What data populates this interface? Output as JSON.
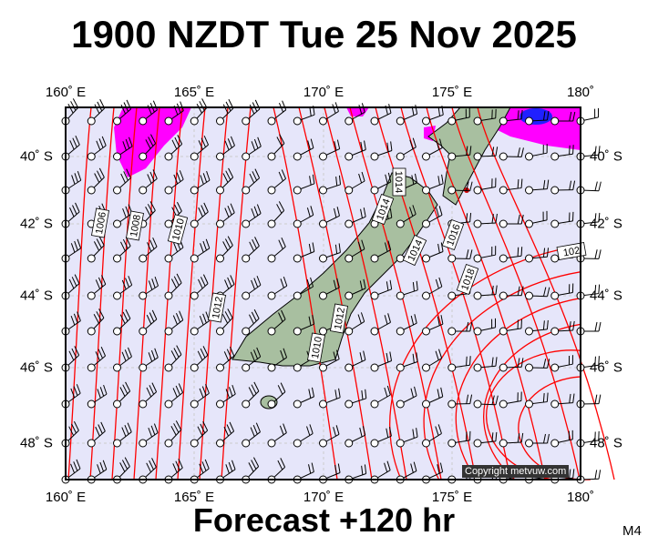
{
  "title": "1900 NZDT Tue 25 Nov 2025",
  "footer": "Forecast +120 hr",
  "model_code": "M4",
  "copyright": "Copyright metvuw.com",
  "lon_labels": [
    "160˚ E",
    "165˚ E",
    "170˚ E",
    "175˚ E",
    "180˚"
  ],
  "lat_labels": [
    "40˚ S",
    "42˚ S",
    "44˚ S",
    "46˚ S",
    "48˚ S"
  ],
  "isobar_labels": [
    "1006",
    "1008",
    "1010",
    "1012",
    "1014",
    "1014",
    "1014",
    "1016",
    "1018",
    "1012",
    "1010",
    "102"
  ],
  "colors": {
    "ocean": "#e6e6fa",
    "isobar": "#ff0000",
    "rain": "#ff00ff",
    "heavy_rain": "#2020ff",
    "land": "#a8bfa0"
  }
}
